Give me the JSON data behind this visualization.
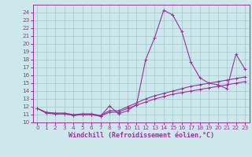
{
  "xlabel": "Windchill (Refroidissement éolien,°C)",
  "background_color": "#cce8eb",
  "grid_color": "#aacdd2",
  "line_color": "#993399",
  "hours": [
    0,
    1,
    2,
    3,
    4,
    5,
    6,
    7,
    8,
    9,
    10,
    11,
    12,
    13,
    14,
    15,
    16,
    17,
    18,
    19,
    20,
    21,
    22,
    23
  ],
  "temp_values": [
    11.8,
    11.2,
    11.1,
    11.1,
    10.9,
    11.0,
    11.0,
    10.8,
    12.1,
    11.1,
    11.5,
    12.3,
    18.0,
    20.8,
    24.3,
    23.7,
    21.6,
    17.7,
    15.7,
    15.0,
    14.8,
    14.3,
    18.7,
    16.8
  ],
  "wind_line1": [
    11.8,
    11.3,
    11.2,
    11.2,
    11.0,
    11.1,
    11.1,
    10.9,
    11.5,
    11.5,
    12.0,
    12.5,
    13.0,
    13.4,
    13.7,
    14.0,
    14.3,
    14.6,
    14.8,
    15.0,
    15.2,
    15.4,
    15.6,
    15.8
  ],
  "wind_line2": [
    11.8,
    11.2,
    11.1,
    11.1,
    10.9,
    11.0,
    11.0,
    10.8,
    11.3,
    11.3,
    11.8,
    12.2,
    12.6,
    13.0,
    13.3,
    13.6,
    13.8,
    14.0,
    14.2,
    14.4,
    14.6,
    14.8,
    15.0,
    15.2
  ],
  "ylim": [
    10,
    25
  ],
  "xlim": [
    -0.5,
    23.5
  ],
  "yticks": [
    10,
    11,
    12,
    13,
    14,
    15,
    16,
    17,
    18,
    19,
    20,
    21,
    22,
    23,
    24
  ],
  "xticks": [
    0,
    1,
    2,
    3,
    4,
    5,
    6,
    7,
    8,
    9,
    10,
    11,
    12,
    13,
    14,
    15,
    16,
    17,
    18,
    19,
    20,
    21,
    22,
    23
  ],
  "tick_fontsize": 5.2,
  "label_fontsize": 6.0,
  "fig_width": 3.2,
  "fig_height": 2.0,
  "dpi": 100
}
